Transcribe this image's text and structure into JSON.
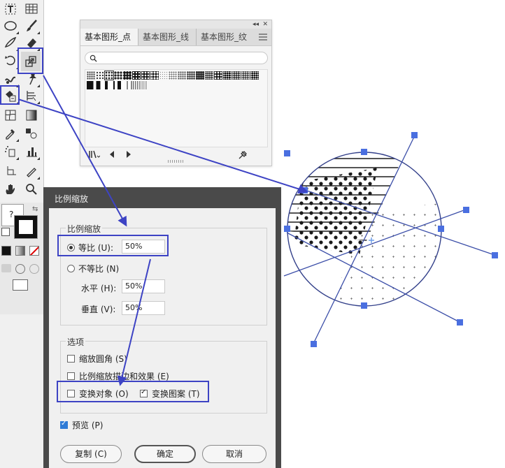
{
  "colors": {
    "accent": "#3d43c4",
    "selection": "#4a6fe0",
    "dialog_frame": "#4a4a4a",
    "checkbox_blue": "#2f7bd6"
  },
  "toolbar": {
    "tools": [
      "type-tool-icon",
      "table-grid-icon",
      "ellipse-tool-icon",
      "paintbrush-icon",
      "blob-brush-icon",
      "eraser-icon",
      "rotate-icon",
      "scale-tool-icon",
      "warp-icon",
      "pin-icon",
      "live-paint-icon",
      "chart-tool-icon",
      "mesh-icon",
      "gradient-icon",
      "eyedropper-icon",
      "blend-icon",
      "symbol-sprayer-icon",
      "column-graph-icon",
      "artboard-icon",
      "slice-icon",
      "hand-icon",
      "zoom-icon"
    ],
    "question_mark": "?"
  },
  "swatches_panel": {
    "tabs": [
      "基本图形_点",
      "基本图形_线",
      "基本图形_纹"
    ],
    "active_tab": 0,
    "search_placeholder": ""
  },
  "scale_dialog": {
    "title": "比例缩放",
    "scale_group_label": "比例缩放",
    "uniform_label": "等比 (U):",
    "uniform_value": "50%",
    "uniform_selected": true,
    "non_uniform_label": "不等比 (N)",
    "horizontal_label": "水平 (H):",
    "horizontal_value": "50%",
    "vertical_label": "垂直 (V):",
    "vertical_value": "50%",
    "options_group_label": "选项",
    "scale_corners_label": "缩放圆角 (S)",
    "scale_corners_checked": false,
    "scale_strokes_label": "比例缩放描边和效果 (E)",
    "scale_strokes_checked": false,
    "transform_objects_label": "变换对象 (O)",
    "transform_objects_checked": false,
    "transform_patterns_label": "变换图案 (T)",
    "transform_patterns_checked": true,
    "preview_label": "预览 (P)",
    "preview_checked": true,
    "copy_button": "复制 (C)",
    "ok_button": "确定",
    "cancel_button": "取消"
  }
}
